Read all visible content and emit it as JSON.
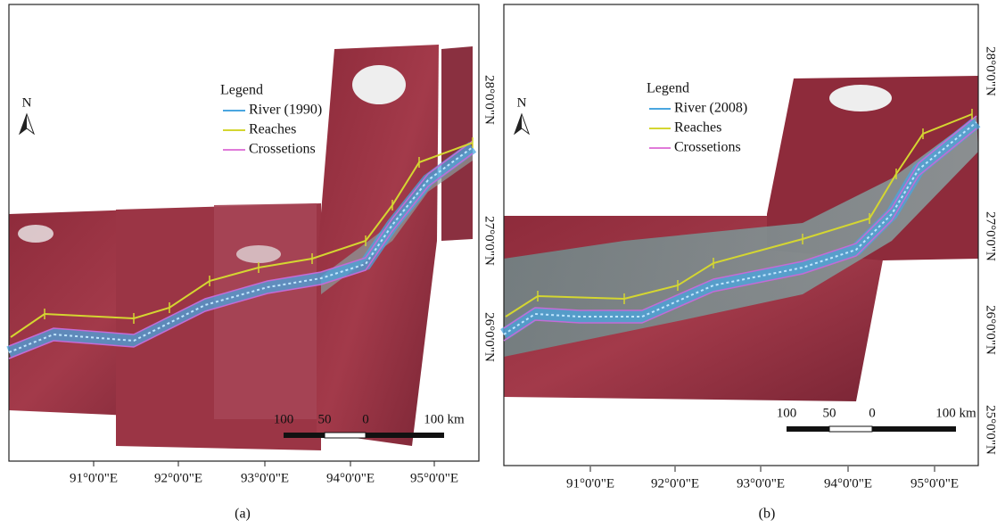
{
  "panels": [
    {
      "legend": {
        "title": "Legend",
        "items": [
          "River (1990)",
          "Reaches",
          "Crossetions"
        ]
      },
      "north": "N",
      "scale_bar": [
        "100",
        "50",
        "0",
        "100 km"
      ],
      "longitude_labels": [
        "91°0'0\"E",
        "92°0'0\"E",
        "93°0'0\"E",
        "94°0'0\"E",
        "95°0'0\"E"
      ],
      "caption": "(a)"
    },
    {
      "legend": {
        "title": "Legend",
        "items": [
          "River (2008)",
          "Reaches",
          "Crossetions"
        ]
      },
      "north": "N",
      "scale_bar": [
        "100",
        "50",
        "0",
        "100 km"
      ],
      "longitude_labels": [
        "91°0'0\"E",
        "92°0'0\"E",
        "93°0'0\"E",
        "94°0'0\"E",
        "95°0'0\"E"
      ],
      "latitude_labels_left": [
        "28°0'0\"N",
        "27°0'0\"N",
        "26°0'0\"N"
      ],
      "latitude_labels_right": [
        "28°0'0\"N",
        "27°0'0\"N",
        "26°0'0\"N",
        "25°0'0\"N"
      ],
      "caption": "(b)"
    }
  ]
}
